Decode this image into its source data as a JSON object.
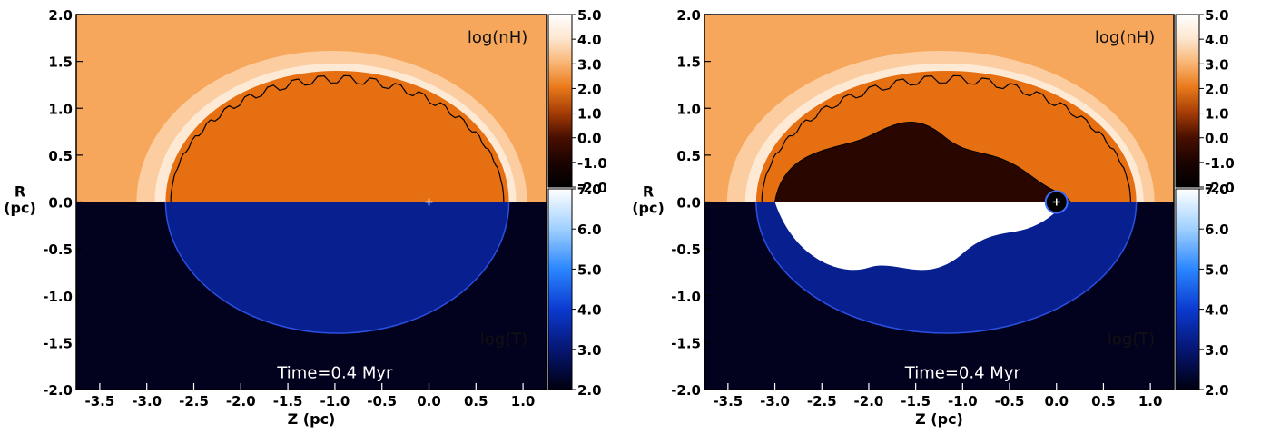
{
  "chart_data": [
    {
      "type": "heatmap",
      "xlabel": "Z (pc)",
      "ylabel": "R\n(pc)",
      "xlim": [
        -3.75,
        1.25
      ],
      "ylim": [
        -2.0,
        2.0
      ],
      "xticks": [
        "-3.5",
        "-3.0",
        "-2.5",
        "-2.0",
        "-1.5",
        "-1.0",
        "-0.5",
        "0.0",
        "0.5",
        "1.0"
      ],
      "yticks": [
        "-2.0",
        "-1.5",
        "-1.0",
        "-0.5",
        "0.0",
        "0.5",
        "1.0",
        "1.5",
        "2.0"
      ],
      "upper_label": "log(nH)",
      "lower_label": "log(T)",
      "time_label": "Time=0.4 Myr",
      "source_position": [
        0.0,
        0.0
      ],
      "colorbar_top": {
        "ticks": [
          "5.0",
          "4.0",
          "3.0",
          "2.0",
          "1.0",
          "0.0",
          "-1.0",
          "-2.0"
        ],
        "range": [
          -2.0,
          5.0
        ]
      },
      "colorbar_bottom": {
        "ticks": [
          "7.0",
          "6.0",
          "5.0",
          "4.0",
          "3.0",
          "2.0"
        ],
        "range": [
          2.0,
          7.0
        ]
      },
      "shell": {
        "z_front": 0.85,
        "z_back": -2.8,
        "r_max": 1.4
      },
      "hot_bubble": false
    },
    {
      "type": "heatmap",
      "xlabel": "Z (pc)",
      "ylabel": "R\n(pc)",
      "xlim": [
        -3.75,
        1.25
      ],
      "ylim": [
        -2.0,
        2.0
      ],
      "xticks": [
        "-3.5",
        "-3.0",
        "-2.5",
        "-2.0",
        "-1.5",
        "-1.0",
        "-0.5",
        "0.0",
        "0.5",
        "1.0"
      ],
      "yticks": [
        "-2.0",
        "-1.5",
        "-1.0",
        "-0.5",
        "0.0",
        "0.5",
        "1.0",
        "1.5",
        "2.0"
      ],
      "upper_label": "log(nH)",
      "lower_label": "log(T)",
      "time_label": "Time=0.4 Myr",
      "source_position": [
        0.0,
        0.0
      ],
      "colorbar_top": {
        "ticks": [
          "5.0",
          "4.0",
          "3.0",
          "2.0",
          "1.0",
          "0.0",
          "-1.0",
          "-2.0"
        ],
        "range": [
          -2.0,
          5.0
        ]
      },
      "colorbar_bottom": {
        "ticks": [
          "7.0",
          "6.0",
          "5.0",
          "4.0",
          "3.0",
          "2.0"
        ],
        "range": [
          2.0,
          7.0
        ]
      },
      "shell": {
        "z_front": 0.85,
        "z_back": -3.2,
        "r_max": 1.4
      },
      "hot_bubble": true
    }
  ],
  "colors": {
    "ambient_density": "#f7a75c",
    "shell_density": "#e66f12",
    "hot_density": "#2a0600",
    "ambient_temperature": "#02021f",
    "shell_temperature": "#08208f",
    "hot_temperature": "#ffffff"
  }
}
